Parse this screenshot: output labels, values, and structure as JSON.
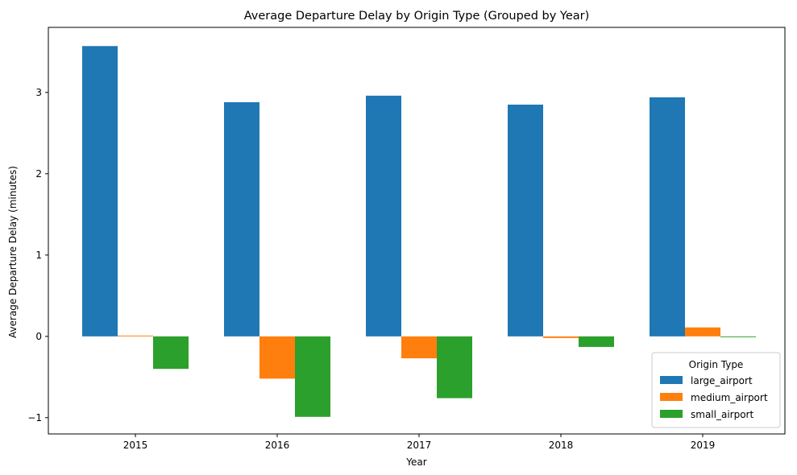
{
  "chart_data": {
    "type": "bar",
    "title": "Average Departure Delay by Origin Type (Grouped by Year)",
    "xlabel": "Year",
    "ylabel": "Average Departure Delay (minutes)",
    "categories": [
      "2015",
      "2016",
      "2017",
      "2018",
      "2019"
    ],
    "ylim": [
      -1.2,
      3.8
    ],
    "yticks": [
      -1,
      0,
      1,
      2,
      3
    ],
    "ytick_labels": [
      "−1",
      "0",
      "1",
      "2",
      "3"
    ],
    "grid": false,
    "legend": {
      "title": "Origin Type",
      "placement": "lower-right"
    },
    "series": [
      {
        "name": "large_airport",
        "color": "#1f77b4",
        "values": [
          3.57,
          2.88,
          2.96,
          2.85,
          2.94
        ]
      },
      {
        "name": "medium_airport",
        "color": "#ff7f0e",
        "values": [
          0.01,
          -0.52,
          -0.27,
          -0.02,
          0.11
        ]
      },
      {
        "name": "small_airport",
        "color": "#2ca02c",
        "values": [
          -0.4,
          -0.99,
          -0.76,
          -0.13,
          -0.01
        ]
      }
    ]
  }
}
